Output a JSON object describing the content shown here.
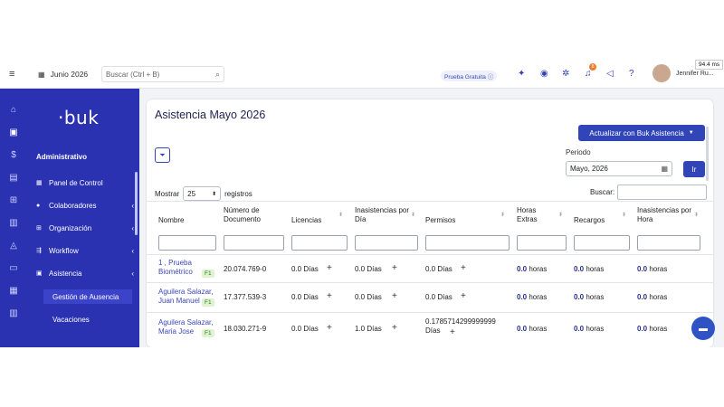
{
  "topbar": {
    "date_label": "Junio 2026",
    "search_placeholder": "Buscar (Ctrl + B)",
    "trial_label": "Prueba Gratuita ⓘ",
    "notification_count": "8",
    "user_name": "Jennifer Ru...",
    "ms_badge": "94.4 ms"
  },
  "sidebar": {
    "logo": "·buk",
    "section": "Administrativo",
    "items": [
      {
        "label": "Panel de Control",
        "icon": "dashboard-icon",
        "chevron": ""
      },
      {
        "label": "Colaboradores",
        "icon": "users-icon",
        "chevron": "‹"
      },
      {
        "label": "Organización",
        "icon": "org-icon",
        "chevron": "‹"
      },
      {
        "label": "Workflow",
        "icon": "workflow-icon",
        "chevron": "‹"
      },
      {
        "label": "Asistencia",
        "icon": "attendance-icon",
        "chevron": "‹"
      }
    ],
    "subitems": [
      {
        "label": "Gestión de Ausencia"
      },
      {
        "label": "Vacaciones"
      }
    ]
  },
  "page": {
    "title": "Asistencia Mayo 2026",
    "update_button": "Actualizar con Buk Asistencia",
    "periodo_label": "Periodo",
    "periodo_value": "Mayo, 2026",
    "ir_button": "Ir",
    "mostrar_label": "Mostrar",
    "mostrar_value": "25",
    "registros_label": "registros",
    "buscar_label": "Buscar:"
  },
  "table": {
    "headers": [
      "Nombre",
      "Número de Documento",
      "Licencias",
      "Inasistencias por Día",
      "Permisos",
      "Horas Extras",
      "Recargos",
      "Inasistencias por Hora"
    ],
    "rows": [
      {
        "name": "1 , Prueba Biométrico",
        "badge": "F1",
        "doc": "20.074.769-0",
        "licencias": "0.0 Días",
        "inasistencias": "0.0 Días",
        "permisos": "0.0 Días",
        "horas_num": "0.0",
        "horas_unit": " horas",
        "recargos_num": "0.0",
        "recargos_unit": " horas",
        "inas_hora_num": "0.0",
        "inas_hora_unit": " horas"
      },
      {
        "name": "Aguilera Salazar, Juan Manuel",
        "badge": "F1",
        "doc": "17.377.539-3",
        "licencias": "0.0 Días",
        "inasistencias": "0.0 Días",
        "permisos": "0.0 Días",
        "horas_num": "0.0",
        "horas_unit": " horas",
        "recargos_num": "0.0",
        "recargos_unit": " horas",
        "inas_hora_num": "0.0",
        "inas_hora_unit": " horas"
      },
      {
        "name": "Aguilera Salazar, Maria Jose",
        "badge": "F1",
        "doc": "18.030.271-9",
        "licencias": "0.0 Días",
        "inasistencias": "1.0 Días",
        "permisos": "0.1785714299999999 Días",
        "horas_num": "0.0",
        "horas_unit": " horas",
        "recargos_num": "0.0",
        "recargos_unit": " horas",
        "inas_hora_num": "0.0",
        "inas_hora_unit": " horas"
      }
    ]
  },
  "colors": {
    "brand": "#2b32b2",
    "accent": "#3144b8"
  }
}
